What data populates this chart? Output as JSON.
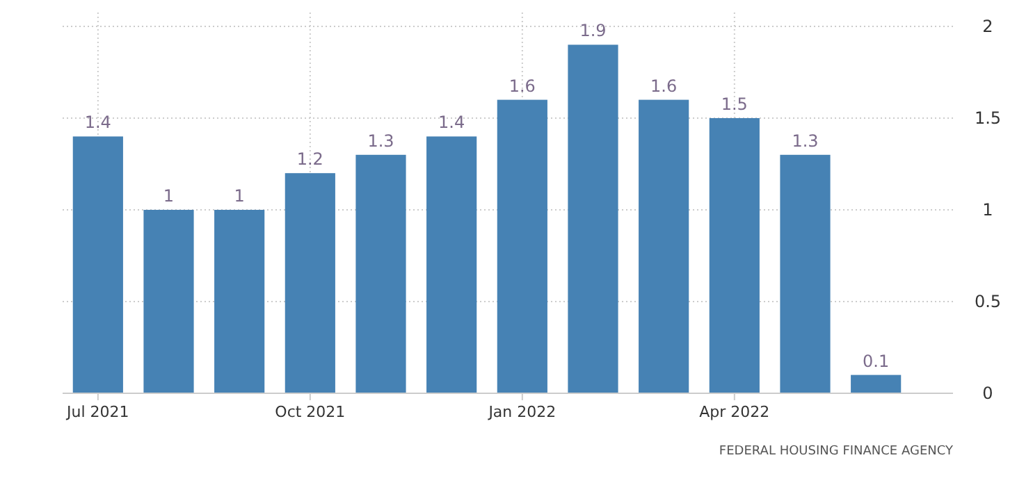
{
  "chart_data": {
    "type": "bar",
    "categories": [
      "Jul 2021",
      null,
      null,
      "Oct 2021",
      null,
      null,
      "Jan 2022",
      null,
      null,
      "Apr 2022",
      null,
      null
    ],
    "values": [
      1.4,
      1,
      1,
      1.2,
      1.3,
      1.4,
      1.6,
      1.9,
      1.6,
      1.5,
      1.3,
      0.1
    ],
    "color": "#4682b4",
    "ylim": [
      0,
      2
    ],
    "yticks": [
      0,
      0.5,
      1,
      1.5,
      2
    ],
    "grid": true,
    "data_labels": true,
    "annotations": [
      "FEDERAL HOUSING FINANCE AGENCY"
    ]
  }
}
